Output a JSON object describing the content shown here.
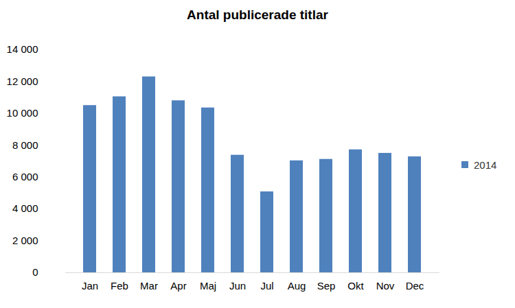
{
  "chart_data": {
    "type": "bar",
    "title": "Antal publicerade titlar",
    "categories": [
      "Jan",
      "Feb",
      "Mar",
      "Apr",
      "Maj",
      "Jun",
      "Jul",
      "Aug",
      "Sep",
      "Okt",
      "Nov",
      "Dec"
    ],
    "series": [
      {
        "name": "2014",
        "color": "#4f81bd",
        "values": [
          10500,
          11050,
          12300,
          10800,
          10350,
          7380,
          5080,
          7030,
          7120,
          7720,
          7500,
          7280
        ]
      }
    ],
    "ylim": [
      0,
      14000
    ],
    "yticks": [
      0,
      {
        "value": 2000,
        "label": "2 000"
      },
      {
        "value": 4000,
        "label": "4 000"
      },
      {
        "value": 6000,
        "label": "6 000"
      },
      {
        "value": 8000,
        "label": "8 000"
      },
      {
        "value": 10000,
        "label": "10 000"
      },
      {
        "value": 12000,
        "label": "12 000"
      },
      {
        "value": 14000,
        "label": "14 000"
      }
    ],
    "grid": false,
    "legend": "right"
  }
}
